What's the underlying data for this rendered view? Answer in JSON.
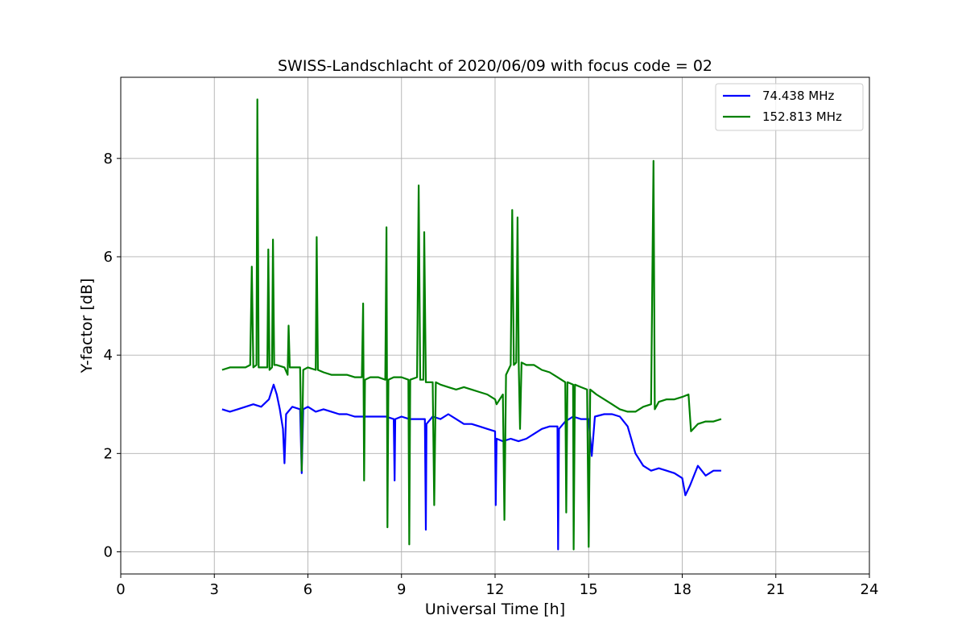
{
  "chart_data": {
    "type": "line",
    "title": "SWISS-Landschlacht of 2020/06/09 with focus code = 02",
    "xlabel": "Universal Time [h]",
    "ylabel": "Y-factor [dB]",
    "xlim": [
      0,
      24
    ],
    "ylim": [
      -0.45,
      9.65
    ],
    "xticks": [
      0,
      3,
      6,
      9,
      12,
      15,
      18,
      21,
      24
    ],
    "yticks": [
      0,
      2,
      4,
      6,
      8
    ],
    "grid": true,
    "legend_position": "upper right",
    "series": [
      {
        "name": "74.438 MHz",
        "color": "#0000ff",
        "points": [
          [
            3.25,
            2.9
          ],
          [
            3.5,
            2.85
          ],
          [
            3.75,
            2.9
          ],
          [
            4.0,
            2.95
          ],
          [
            4.25,
            3.0
          ],
          [
            4.5,
            2.95
          ],
          [
            4.75,
            3.1
          ],
          [
            4.9,
            3.4
          ],
          [
            5.0,
            3.2
          ],
          [
            5.1,
            2.9
          ],
          [
            5.2,
            2.5
          ],
          [
            5.25,
            1.8
          ],
          [
            5.3,
            2.8
          ],
          [
            5.5,
            2.95
          ],
          [
            5.75,
            2.9
          ],
          [
            5.8,
            1.6
          ],
          [
            5.85,
            2.9
          ],
          [
            6.0,
            2.95
          ],
          [
            6.25,
            2.85
          ],
          [
            6.5,
            2.9
          ],
          [
            6.75,
            2.85
          ],
          [
            7.0,
            2.8
          ],
          [
            7.25,
            2.8
          ],
          [
            7.5,
            2.75
          ],
          [
            7.75,
            2.75
          ],
          [
            8.0,
            2.75
          ],
          [
            8.25,
            2.75
          ],
          [
            8.5,
            2.75
          ],
          [
            8.75,
            2.7
          ],
          [
            8.78,
            1.45
          ],
          [
            8.8,
            2.7
          ],
          [
            9.0,
            2.75
          ],
          [
            9.25,
            2.7
          ],
          [
            9.5,
            2.7
          ],
          [
            9.75,
            2.7
          ],
          [
            9.78,
            0.45
          ],
          [
            9.8,
            2.6
          ],
          [
            10.0,
            2.75
          ],
          [
            10.25,
            2.7
          ],
          [
            10.5,
            2.8
          ],
          [
            10.75,
            2.7
          ],
          [
            11.0,
            2.6
          ],
          [
            11.25,
            2.6
          ],
          [
            11.5,
            2.55
          ],
          [
            11.75,
            2.5
          ],
          [
            12.0,
            2.45
          ],
          [
            12.02,
            0.95
          ],
          [
            12.05,
            2.3
          ],
          [
            12.25,
            2.25
          ],
          [
            12.5,
            2.3
          ],
          [
            12.75,
            2.25
          ],
          [
            13.0,
            2.3
          ],
          [
            13.25,
            2.4
          ],
          [
            13.5,
            2.5
          ],
          [
            13.75,
            2.55
          ],
          [
            14.0,
            2.55
          ],
          [
            14.02,
            0.05
          ],
          [
            14.05,
            2.5
          ],
          [
            14.25,
            2.65
          ],
          [
            14.5,
            2.75
          ],
          [
            14.75,
            2.7
          ],
          [
            15.0,
            2.7
          ],
          [
            15.1,
            1.95
          ],
          [
            15.2,
            2.75
          ],
          [
            15.5,
            2.8
          ],
          [
            15.75,
            2.8
          ],
          [
            16.0,
            2.75
          ],
          [
            16.25,
            2.55
          ],
          [
            16.5,
            2.0
          ],
          [
            16.75,
            1.75
          ],
          [
            17.0,
            1.65
          ],
          [
            17.25,
            1.7
          ],
          [
            17.5,
            1.65
          ],
          [
            17.75,
            1.6
          ],
          [
            18.0,
            1.5
          ],
          [
            18.1,
            1.15
          ],
          [
            18.25,
            1.35
          ],
          [
            18.5,
            1.75
          ],
          [
            18.75,
            1.55
          ],
          [
            19.0,
            1.65
          ],
          [
            19.25,
            1.65
          ]
        ]
      },
      {
        "name": "152.813 MHz",
        "color": "#008000",
        "points": [
          [
            3.25,
            3.7
          ],
          [
            3.5,
            3.75
          ],
          [
            3.75,
            3.75
          ],
          [
            4.0,
            3.75
          ],
          [
            4.15,
            3.8
          ],
          [
            4.2,
            5.8
          ],
          [
            4.25,
            3.75
          ],
          [
            4.35,
            3.8
          ],
          [
            4.38,
            9.2
          ],
          [
            4.42,
            3.75
          ],
          [
            4.5,
            3.75
          ],
          [
            4.7,
            3.75
          ],
          [
            4.73,
            6.15
          ],
          [
            4.77,
            3.7
          ],
          [
            4.85,
            3.75
          ],
          [
            4.88,
            6.35
          ],
          [
            4.92,
            3.8
          ],
          [
            5.0,
            3.8
          ],
          [
            5.25,
            3.75
          ],
          [
            5.35,
            3.6
          ],
          [
            5.38,
            4.6
          ],
          [
            5.42,
            3.75
          ],
          [
            5.5,
            3.75
          ],
          [
            5.75,
            3.75
          ],
          [
            5.8,
            1.65
          ],
          [
            5.85,
            3.7
          ],
          [
            6.0,
            3.75
          ],
          [
            6.25,
            3.7
          ],
          [
            6.28,
            6.4
          ],
          [
            6.32,
            3.7
          ],
          [
            6.5,
            3.65
          ],
          [
            6.75,
            3.6
          ],
          [
            7.0,
            3.6
          ],
          [
            7.25,
            3.6
          ],
          [
            7.5,
            3.55
          ],
          [
            7.73,
            3.55
          ],
          [
            7.77,
            5.05
          ],
          [
            7.8,
            1.45
          ],
          [
            7.83,
            3.5
          ],
          [
            8.0,
            3.55
          ],
          [
            8.25,
            3.55
          ],
          [
            8.48,
            3.5
          ],
          [
            8.52,
            6.6
          ],
          [
            8.55,
            0.5
          ],
          [
            8.58,
            3.5
          ],
          [
            8.75,
            3.55
          ],
          [
            9.0,
            3.55
          ],
          [
            9.22,
            3.5
          ],
          [
            9.25,
            0.15
          ],
          [
            9.28,
            3.5
          ],
          [
            9.5,
            3.55
          ],
          [
            9.55,
            7.45
          ],
          [
            9.6,
            3.5
          ],
          [
            9.7,
            3.5
          ],
          [
            9.73,
            6.5
          ],
          [
            9.78,
            3.45
          ],
          [
            10.0,
            3.45
          ],
          [
            10.05,
            0.95
          ],
          [
            10.1,
            3.45
          ],
          [
            10.25,
            3.4
          ],
          [
            10.5,
            3.35
          ],
          [
            10.75,
            3.3
          ],
          [
            11.0,
            3.35
          ],
          [
            11.25,
            3.3
          ],
          [
            11.5,
            3.25
          ],
          [
            11.75,
            3.2
          ],
          [
            12.0,
            3.1
          ],
          [
            12.05,
            3.0
          ],
          [
            12.25,
            3.2
          ],
          [
            12.3,
            0.65
          ],
          [
            12.35,
            3.6
          ],
          [
            12.5,
            3.8
          ],
          [
            12.55,
            6.95
          ],
          [
            12.6,
            3.8
          ],
          [
            12.68,
            3.85
          ],
          [
            12.72,
            6.8
          ],
          [
            12.76,
            3.8
          ],
          [
            12.8,
            2.5
          ],
          [
            12.85,
            3.85
          ],
          [
            13.0,
            3.8
          ],
          [
            13.25,
            3.8
          ],
          [
            13.5,
            3.7
          ],
          [
            13.75,
            3.65
          ],
          [
            14.0,
            3.55
          ],
          [
            14.25,
            3.45
          ],
          [
            14.28,
            0.8
          ],
          [
            14.32,
            3.45
          ],
          [
            14.5,
            3.4
          ],
          [
            14.52,
            0.05
          ],
          [
            14.56,
            3.4
          ],
          [
            14.75,
            3.35
          ],
          [
            14.95,
            3.3
          ],
          [
            15.0,
            0.1
          ],
          [
            15.05,
            3.3
          ],
          [
            15.25,
            3.2
          ],
          [
            15.5,
            3.1
          ],
          [
            15.75,
            3.0
          ],
          [
            16.0,
            2.9
          ],
          [
            16.25,
            2.85
          ],
          [
            16.5,
            2.85
          ],
          [
            16.75,
            2.95
          ],
          [
            17.0,
            3.0
          ],
          [
            17.08,
            7.95
          ],
          [
            17.12,
            2.9
          ],
          [
            17.25,
            3.05
          ],
          [
            17.5,
            3.1
          ],
          [
            17.75,
            3.1
          ],
          [
            18.0,
            3.15
          ],
          [
            18.2,
            3.2
          ],
          [
            18.28,
            2.45
          ],
          [
            18.5,
            2.6
          ],
          [
            18.75,
            2.65
          ],
          [
            19.0,
            2.65
          ],
          [
            19.25,
            2.7
          ]
        ]
      }
    ]
  }
}
